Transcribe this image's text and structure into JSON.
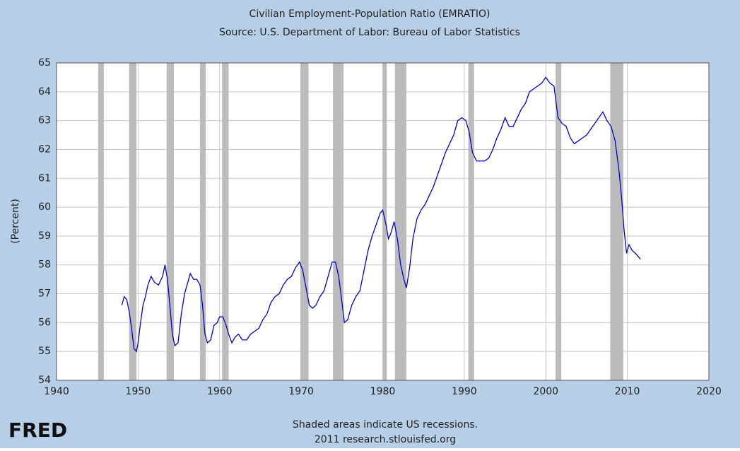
{
  "chart_data": {
    "type": "line",
    "title": "Civilian Employment-Population Ratio (EMRATIO)",
    "subtitle": "Source: U.S. Department of Labor: Bureau of Labor Statistics",
    "ylabel": "(Percent)",
    "note": "Shaded areas indicate US recessions.",
    "source": "2011 research.stlouisfed.org",
    "logo": "FRED",
    "color": "#0000dd",
    "grid": true,
    "recession_color": "#bbbbbb",
    "recessions": [
      [
        1945.1,
        1945.8
      ],
      [
        1948.9,
        1949.8
      ],
      [
        1953.5,
        1954.4
      ],
      [
        1957.6,
        1958.3
      ],
      [
        1960.3,
        1961.1
      ],
      [
        1969.9,
        1970.9
      ],
      [
        1973.9,
        1975.2
      ],
      [
        1980.0,
        1980.5
      ],
      [
        1981.5,
        1982.9
      ],
      [
        1990.5,
        1991.2
      ],
      [
        2001.2,
        2001.9
      ],
      [
        2007.9,
        2009.5
      ]
    ],
    "x": [
      1948.0,
      1948.3,
      1948.6,
      1948.9,
      1949.2,
      1949.5,
      1949.8,
      1950.0,
      1950.3,
      1950.6,
      1950.9,
      1951.2,
      1951.6,
      1952.0,
      1952.5,
      1953.0,
      1953.3,
      1953.6,
      1953.9,
      1954.2,
      1954.5,
      1954.9,
      1955.3,
      1955.7,
      1956.0,
      1956.4,
      1956.8,
      1957.2,
      1957.6,
      1957.9,
      1958.2,
      1958.5,
      1958.9,
      1959.3,
      1959.7,
      1960.0,
      1960.4,
      1960.8,
      1961.1,
      1961.5,
      1961.9,
      1962.3,
      1962.8,
      1963.3,
      1963.8,
      1964.3,
      1964.8,
      1965.3,
      1965.8,
      1966.3,
      1966.8,
      1967.3,
      1967.8,
      1968.3,
      1968.8,
      1969.3,
      1969.8,
      1970.2,
      1970.6,
      1971.0,
      1971.4,
      1971.8,
      1972.3,
      1972.8,
      1973.3,
      1973.8,
      1974.2,
      1974.6,
      1975.0,
      1975.3,
      1975.7,
      1976.2,
      1976.7,
      1977.2,
      1977.7,
      1978.2,
      1978.7,
      1979.2,
      1979.7,
      1980.0,
      1980.4,
      1980.7,
      1981.0,
      1981.4,
      1981.8,
      1982.2,
      1982.6,
      1982.9,
      1983.3,
      1983.7,
      1984.2,
      1984.7,
      1985.2,
      1985.7,
      1986.2,
      1986.7,
      1987.2,
      1987.7,
      1988.2,
      1988.7,
      1989.2,
      1989.7,
      1990.2,
      1990.6,
      1991.0,
      1991.5,
      1992.0,
      1992.5,
      1993.0,
      1993.5,
      1994.0,
      1994.5,
      1995.0,
      1995.5,
      1996.0,
      1996.5,
      1997.0,
      1997.5,
      1998.0,
      1998.5,
      1999.0,
      1999.5,
      2000.0,
      2000.5,
      2001.0,
      2001.5,
      2002.0,
      2002.5,
      2003.0,
      2003.5,
      2004.0,
      2004.5,
      2005.0,
      2005.5,
      2006.0,
      2006.5,
      2007.0,
      2007.5,
      2008.0,
      2008.5,
      2009.0,
      2009.3,
      2009.6,
      2009.9,
      2010.2,
      2010.6,
      2011.0,
      2011.3,
      2011.6
    ],
    "values": [
      56.6,
      56.9,
      56.8,
      56.4,
      55.8,
      55.1,
      55.0,
      55.3,
      56.0,
      56.6,
      56.9,
      57.3,
      57.6,
      57.4,
      57.3,
      57.6,
      58.0,
      57.5,
      56.6,
      55.6,
      55.2,
      55.3,
      56.3,
      57.0,
      57.3,
      57.7,
      57.5,
      57.5,
      57.3,
      56.6,
      55.6,
      55.3,
      55.4,
      55.9,
      56.0,
      56.2,
      56.2,
      55.9,
      55.6,
      55.3,
      55.5,
      55.6,
      55.4,
      55.4,
      55.6,
      55.7,
      55.8,
      56.1,
      56.3,
      56.7,
      56.9,
      57.0,
      57.3,
      57.5,
      57.6,
      57.9,
      58.1,
      57.8,
      57.2,
      56.6,
      56.5,
      56.6,
      56.9,
      57.1,
      57.6,
      58.1,
      58.1,
      57.6,
      56.7,
      56.0,
      56.1,
      56.6,
      56.9,
      57.1,
      57.8,
      58.5,
      59.0,
      59.4,
      59.8,
      59.9,
      59.4,
      58.9,
      59.1,
      59.5,
      58.9,
      58.0,
      57.5,
      57.2,
      57.9,
      58.9,
      59.6,
      59.9,
      60.1,
      60.4,
      60.7,
      61.1,
      61.5,
      61.9,
      62.2,
      62.5,
      63.0,
      63.1,
      63.0,
      62.6,
      61.9,
      61.6,
      61.6,
      61.6,
      61.7,
      62.0,
      62.4,
      62.7,
      63.1,
      62.8,
      62.8,
      63.1,
      63.4,
      63.6,
      64.0,
      64.1,
      64.2,
      64.3,
      64.5,
      64.3,
      64.2,
      63.1,
      62.9,
      62.8,
      62.4,
      62.2,
      62.3,
      62.4,
      62.5,
      62.7,
      62.9,
      63.1,
      63.3,
      63.0,
      62.8,
      62.3,
      61.2,
      60.3,
      59.2,
      58.4,
      58.7,
      58.5,
      58.4,
      58.3,
      58.2
    ],
    "xlim": [
      1940,
      2020
    ],
    "xticks": [
      1940,
      1950,
      1960,
      1970,
      1980,
      1990,
      2000,
      2010,
      2020
    ],
    "ylim": [
      54,
      65
    ],
    "yticks": [
      54,
      55,
      56,
      57,
      58,
      59,
      60,
      61,
      62,
      63,
      64,
      65
    ]
  }
}
